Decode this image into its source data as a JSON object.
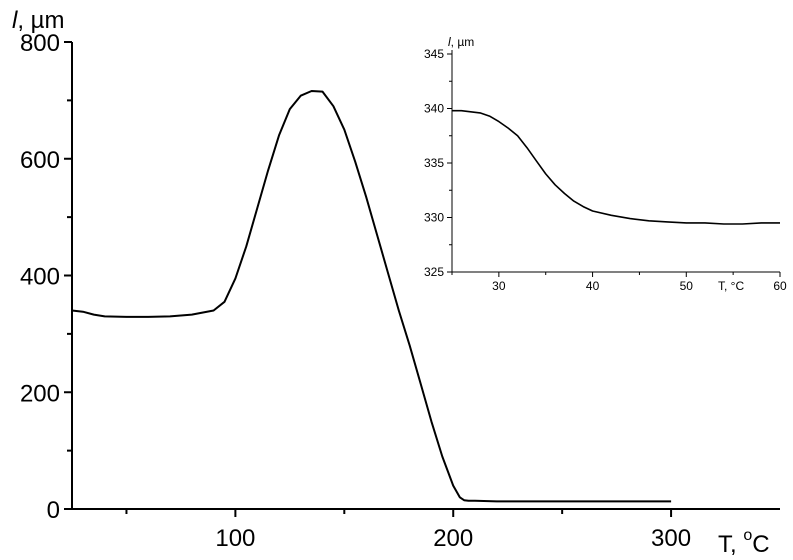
{
  "chart_data": [
    {
      "id": "main",
      "type": "line",
      "ylabel_italic": "l",
      "ylabel_rest": ", µm",
      "xlabel_base": "T, ",
      "xlabel_sup": "o",
      "xlabel_unit": "C",
      "xlim": [
        25,
        350
      ],
      "ylim": [
        0,
        800
      ],
      "xticks_major": [
        100,
        200,
        300
      ],
      "xticks_minor": [
        50,
        150,
        250
      ],
      "yticks_major": [
        0,
        200,
        400,
        600,
        800
      ],
      "yticks_minor": [
        100,
        300,
        500,
        700
      ],
      "grid": false,
      "series": [
        {
          "x": [
            25,
            30,
            35,
            40,
            50,
            60,
            70,
            80,
            90,
            95,
            100,
            105,
            110,
            115,
            120,
            125,
            130,
            135,
            140,
            145,
            150,
            155,
            160,
            165,
            170,
            175,
            180,
            185,
            190,
            195,
            200,
            203,
            205,
            207,
            210,
            220,
            240,
            260,
            280,
            300
          ],
          "y": [
            340,
            338,
            333,
            330,
            329,
            329,
            330,
            333,
            340,
            355,
            395,
            450,
            515,
            580,
            640,
            685,
            708,
            716,
            715,
            690,
            650,
            595,
            535,
            470,
            405,
            340,
            280,
            215,
            150,
            90,
            40,
            20,
            15,
            14,
            14,
            13,
            13,
            13,
            13,
            13
          ]
        }
      ]
    },
    {
      "id": "inset",
      "type": "line",
      "ylabel_italic": "l",
      "ylabel_rest": ", µm",
      "xlabel": "T, °C",
      "xlim": [
        25,
        60
      ],
      "ylim": [
        325,
        345
      ],
      "xticks": [
        30,
        40,
        50,
        60
      ],
      "yticks": [
        325,
        330,
        335,
        340,
        345
      ],
      "grid": false,
      "series": [
        {
          "x": [
            25,
            26,
            27,
            28,
            29,
            30,
            31,
            32,
            33,
            34,
            35,
            36,
            37,
            38,
            39,
            40,
            42,
            44,
            46,
            48,
            50,
            52,
            54,
            56,
            58,
            60
          ],
          "y": [
            339.8,
            339.8,
            339.7,
            339.6,
            339.3,
            338.8,
            338.2,
            337.5,
            336.4,
            335.2,
            334.0,
            333.0,
            332.2,
            331.5,
            331.0,
            330.6,
            330.2,
            329.9,
            329.7,
            329.6,
            329.5,
            329.5,
            329.4,
            329.4,
            329.5,
            329.5
          ]
        }
      ]
    }
  ]
}
